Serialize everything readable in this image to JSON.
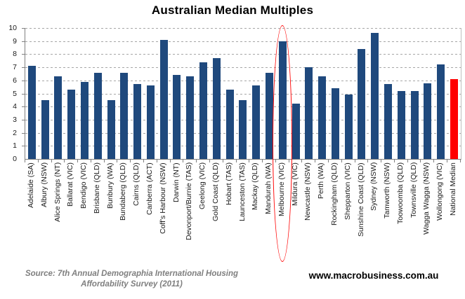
{
  "title": "Australian Median Multiples",
  "footer": {
    "source_line1": "Source: 7th Annual Demographia International Housing",
    "source_line2": "Affordability Survey (2011)",
    "website": "www.macrobusiness.com.au"
  },
  "colors": {
    "bar": "#1F497D",
    "highlight_bar": "#FF0000",
    "annotation": "#FF0000",
    "gridline": "#A6A6A6",
    "axis": "#808080",
    "source_text": "#7F7F7F"
  },
  "chart_data": {
    "type": "bar",
    "title": "Australian Median Multiples",
    "xlabel": "",
    "ylabel": "",
    "ylim": [
      0,
      10
    ],
    "yticks": [
      0,
      1,
      2,
      3,
      4,
      5,
      6,
      7,
      8,
      9,
      10
    ],
    "grid": "horizontal dashed gridlines at every integer",
    "legend": "none",
    "categories": [
      "Adelaide (SA)",
      "Albury (NSW)",
      "Alice Springs (NT)",
      "Ballarat (VIC)",
      "Bendigo (VIC)",
      "Brisbane (QLD)",
      "Bunbury (WA)",
      "Bundaberg (QLD)",
      "Cairns (QLD)",
      "Canberra (ACT)",
      "Coff's Harbour (NSW)",
      "Darwin (NT)",
      "Devonport/Burnie (TAS)",
      "Geelong (VIC)",
      "Gold Coast (QLD)",
      "Hobart (TAS)",
      "Launceston (TAS)",
      "Mackay (QLD)",
      "Mandurah (WA)",
      "Melbourne (VIC)",
      "Mildura (VIC)",
      "Newcastle (NSW)",
      "Perth (WA)",
      "Rockingham (QLD)",
      "Shepparton (VIC)",
      "Sunshine Coast (QLD)",
      "Sydney (NSW)",
      "Tamworth (NSW)",
      "Toowoomba (QLD)",
      "Townsville (QLD)",
      "Wagga Wagga (NSW)",
      "Wollongong (VIC)",
      "National Median"
    ],
    "values": [
      7.1,
      4.5,
      6.3,
      5.3,
      5.9,
      6.6,
      4.5,
      6.6,
      5.7,
      5.6,
      9.1,
      6.4,
      6.3,
      7.4,
      7.7,
      5.3,
      4.5,
      5.6,
      6.6,
      9.0,
      4.2,
      7.0,
      6.3,
      5.4,
      4.9,
      8.4,
      9.6,
      5.7,
      5.2,
      5.2,
      5.8,
      7.2,
      6.1
    ],
    "highlighted_category": "National Median",
    "annotation": {
      "shape": "ellipse",
      "target": "Melbourne (VIC)",
      "color": "#FF0000",
      "note": "red ellipse circling the Melbourne (VIC) bar and its axis label"
    }
  }
}
